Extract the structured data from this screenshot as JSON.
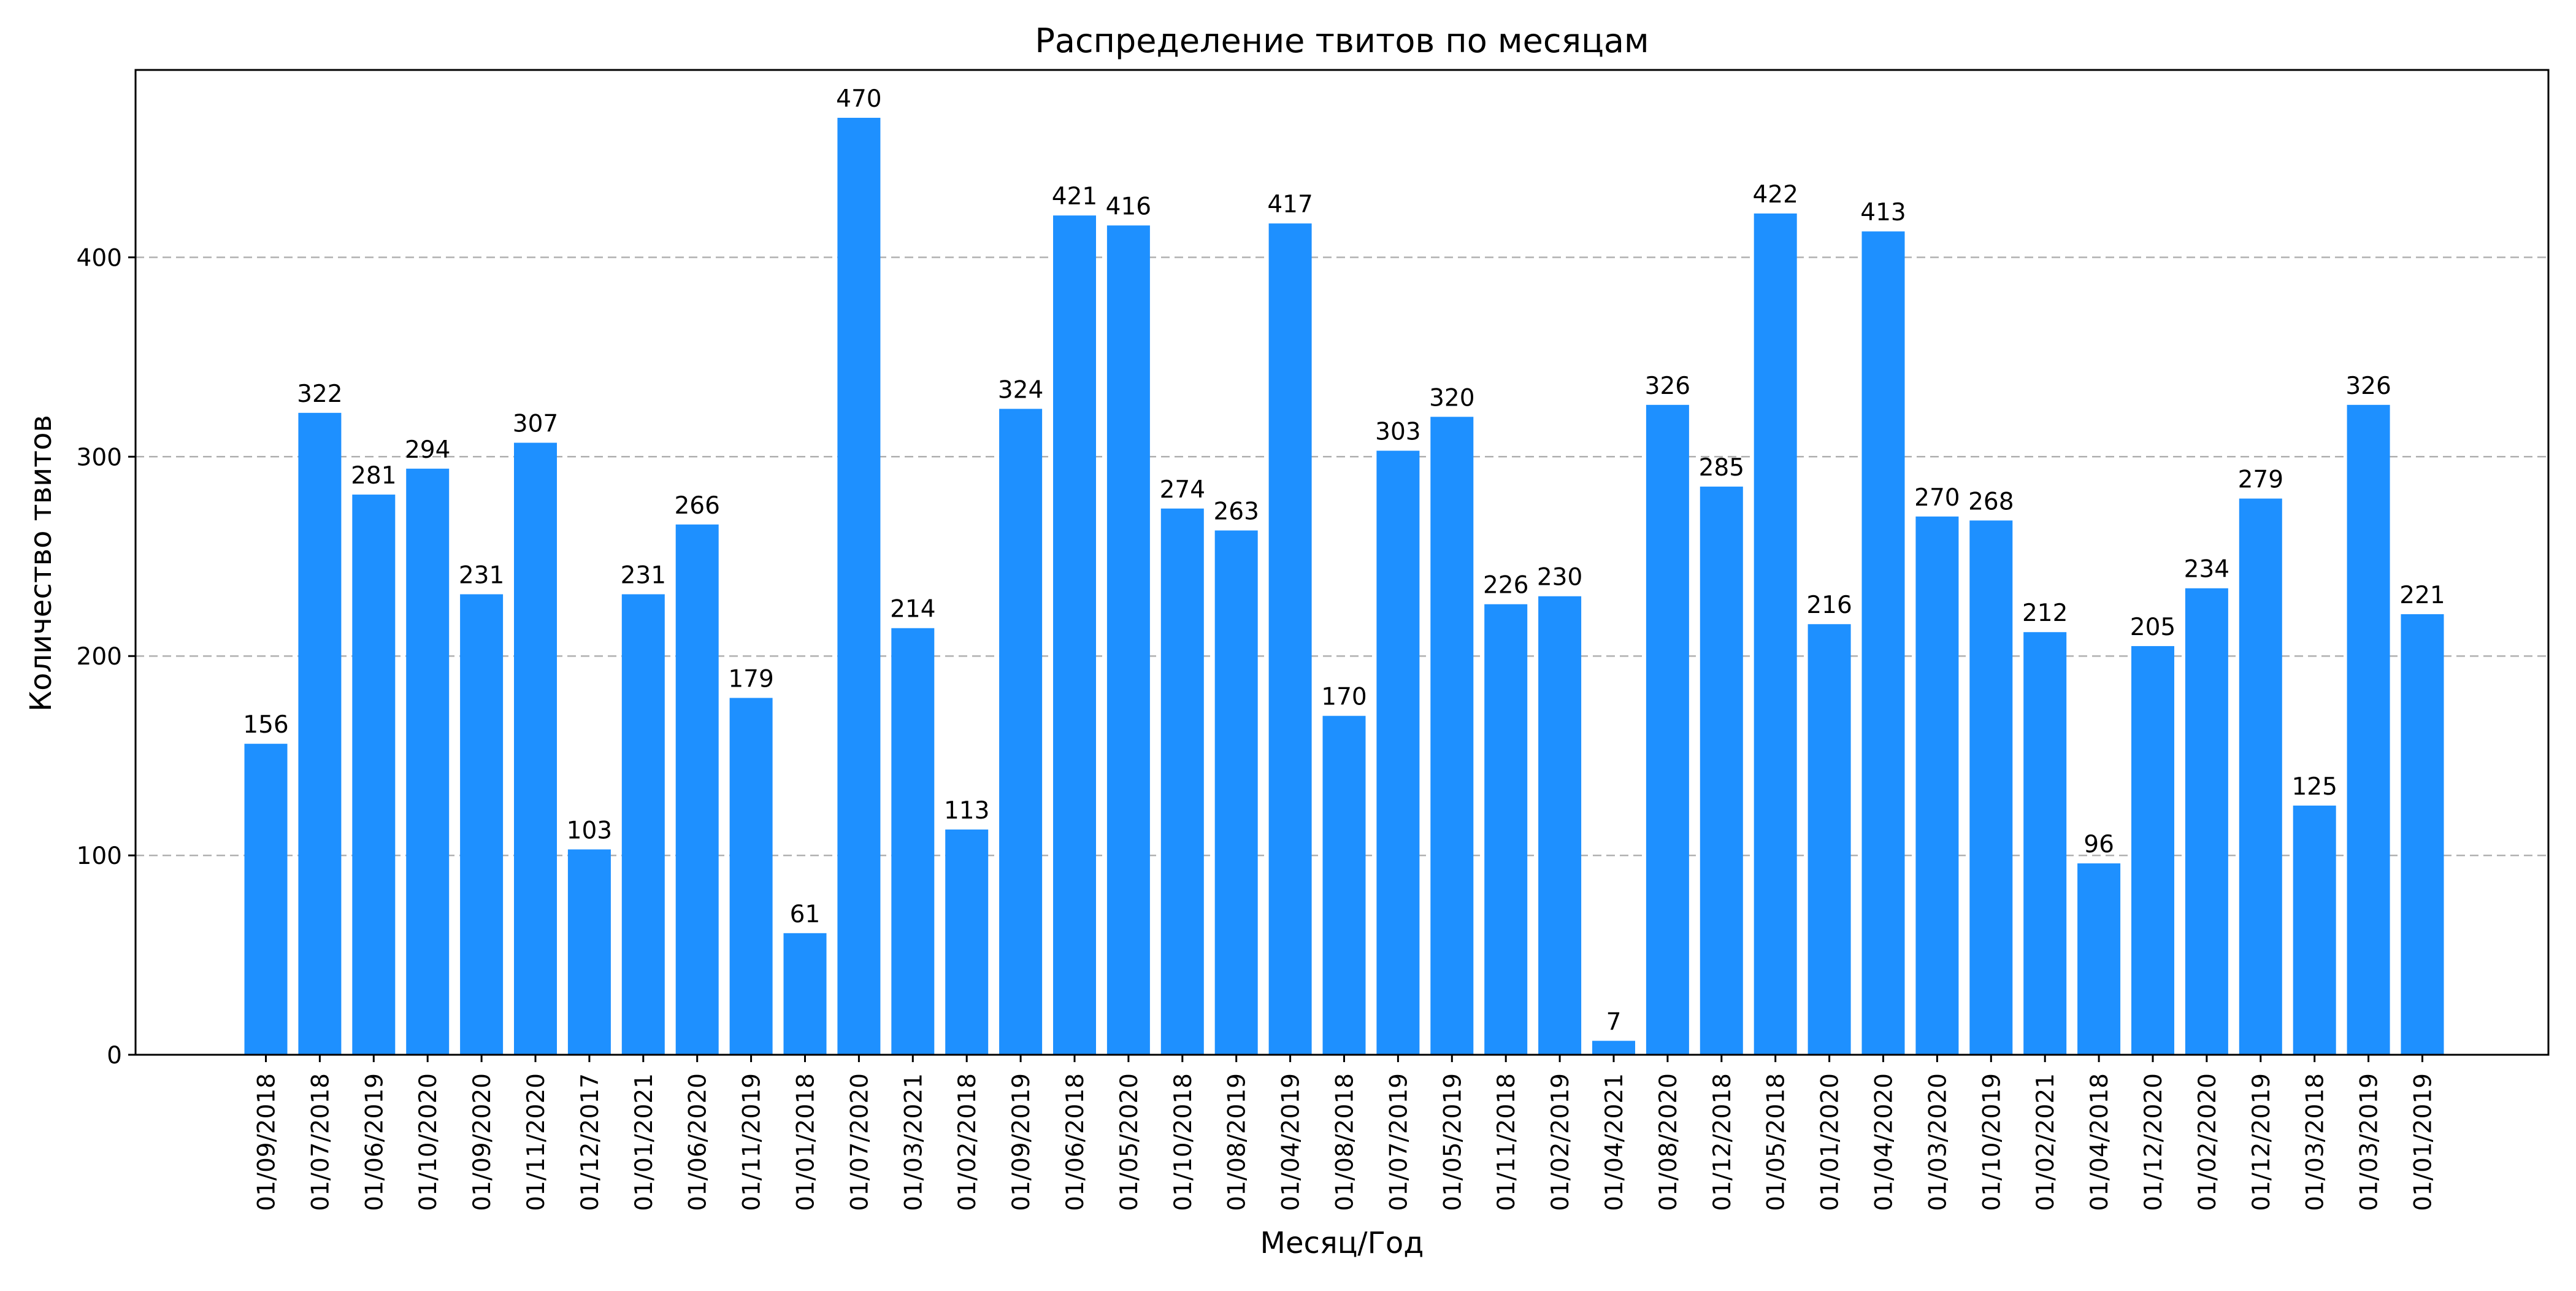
{
  "chart_data": {
    "type": "bar",
    "title": "Распределение твитов по месяцам",
    "xlabel": "Месяц/Год",
    "ylabel": "Количество твитов",
    "ylim": [
      0,
      494
    ],
    "yticks": [
      0,
      100,
      200,
      300,
      400
    ],
    "grid": "y-dashed",
    "bar_color": "#1e90ff",
    "categories": [
      "01/09/2018",
      "01/07/2018",
      "01/06/2019",
      "01/10/2020",
      "01/09/2020",
      "01/11/2020",
      "01/12/2017",
      "01/01/2021",
      "01/06/2020",
      "01/11/2019",
      "01/01/2018",
      "01/07/2020",
      "01/03/2021",
      "01/02/2018",
      "01/09/2019",
      "01/06/2018",
      "01/05/2020",
      "01/10/2018",
      "01/08/2019",
      "01/04/2019",
      "01/08/2018",
      "01/07/2019",
      "01/05/2019",
      "01/11/2018",
      "01/02/2019",
      "01/04/2021",
      "01/08/2020",
      "01/12/2018",
      "01/05/2018",
      "01/01/2020",
      "01/04/2020",
      "01/03/2020",
      "01/10/2019",
      "01/02/2021",
      "01/04/2018",
      "01/12/2020",
      "01/02/2020",
      "01/12/2019",
      "01/03/2018",
      "01/03/2019",
      "01/01/2019"
    ],
    "values": [
      156,
      322,
      281,
      294,
      231,
      307,
      103,
      231,
      266,
      179,
      61,
      470,
      214,
      113,
      324,
      421,
      416,
      274,
      263,
      417,
      170,
      303,
      320,
      226,
      230,
      7,
      326,
      285,
      422,
      216,
      413,
      270,
      268,
      212,
      96,
      205,
      234,
      279,
      125,
      326,
      221
    ]
  }
}
